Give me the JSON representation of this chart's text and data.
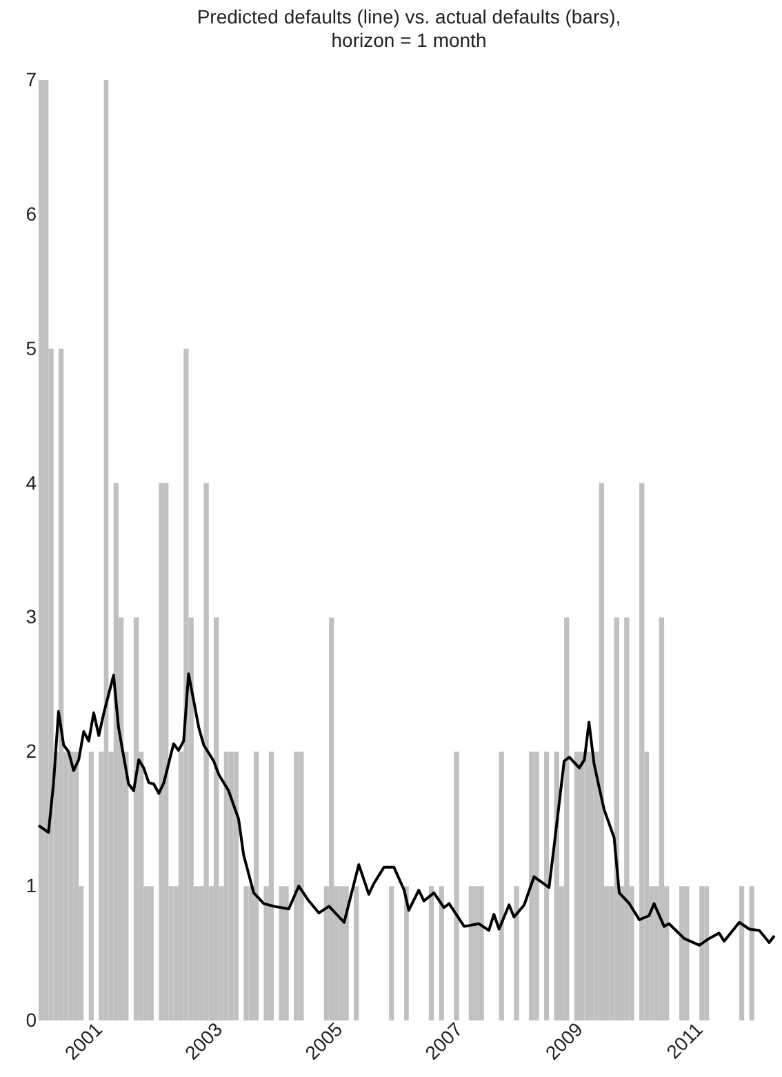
{
  "chart_data": {
    "type": "bar",
    "title": "Predicted defaults (line) vs. actual defaults (bars),\nhorizon = 1 month",
    "xlim": [
      "2000-01",
      "2012-05"
    ],
    "xticks": [
      {
        "value": "2001-01",
        "label": "2001"
      },
      {
        "value": "2003-01",
        "label": "2003"
      },
      {
        "value": "2005-01",
        "label": "2005"
      },
      {
        "value": "2007-01",
        "label": "2007"
      },
      {
        "value": "2009-01",
        "label": "2009"
      },
      {
        "value": "2011-01",
        "label": "2011"
      }
    ],
    "ylim": [
      0,
      7
    ],
    "yticks": [
      0,
      1,
      2,
      3,
      4,
      5,
      6,
      7
    ],
    "series": [
      {
        "color": "#c0c0c0",
        "x": [
          "2000-01",
          "2000-02",
          "2000-03",
          "2000-04",
          "2000-05",
          "2000-06",
          "2000-07",
          "2000-08",
          "2000-09",
          "2000-10",
          "2000-11",
          "2000-12",
          "2001-01",
          "2001-02",
          "2001-03",
          "2001-04",
          "2001-05",
          "2001-06",
          "2001-07",
          "2001-08",
          "2001-09",
          "2001-10",
          "2001-11",
          "2001-12",
          "2002-01",
          "2002-02",
          "2002-03",
          "2002-04",
          "2002-05",
          "2002-06",
          "2002-07",
          "2002-08",
          "2002-09",
          "2002-10",
          "2002-11",
          "2002-12",
          "2003-01",
          "2003-02",
          "2003-03",
          "2003-04",
          "2003-05",
          "2003-06",
          "2003-07",
          "2003-08",
          "2003-09",
          "2003-10",
          "2003-11",
          "2003-12",
          "2004-01",
          "2004-02",
          "2004-03",
          "2004-04",
          "2004-05",
          "2004-06",
          "2004-07",
          "2004-08",
          "2004-09",
          "2004-10",
          "2004-11",
          "2004-12",
          "2005-01",
          "2005-02",
          "2005-03",
          "2005-04",
          "2005-05",
          "2005-06",
          "2005-07",
          "2005-08",
          "2005-09",
          "2005-10",
          "2005-11",
          "2005-12",
          "2006-01",
          "2006-02",
          "2006-03",
          "2006-04",
          "2006-05",
          "2006-06",
          "2006-07",
          "2006-08",
          "2006-09",
          "2006-10",
          "2006-11",
          "2006-12",
          "2007-01",
          "2007-02",
          "2007-03",
          "2007-04",
          "2007-05",
          "2007-06",
          "2007-07",
          "2007-08",
          "2007-09",
          "2007-10",
          "2007-11",
          "2007-12",
          "2008-01",
          "2008-02",
          "2008-03",
          "2008-04",
          "2008-05",
          "2008-06",
          "2008-07",
          "2008-08",
          "2008-09",
          "2008-10",
          "2008-11",
          "2008-12",
          "2009-01",
          "2009-02",
          "2009-03",
          "2009-04",
          "2009-05",
          "2009-06",
          "2009-07",
          "2009-08",
          "2009-09",
          "2009-10",
          "2009-11",
          "2009-12",
          "2010-01",
          "2010-02",
          "2010-03",
          "2010-04",
          "2010-05",
          "2010-06",
          "2010-07",
          "2010-08",
          "2010-09",
          "2010-10",
          "2010-11",
          "2010-12",
          "2011-01",
          "2011-02",
          "2011-03",
          "2011-04",
          "2011-05",
          "2011-06",
          "2011-07",
          "2011-08",
          "2011-09",
          "2011-10",
          "2011-11",
          "2011-12",
          "2012-01",
          "2012-02",
          "2012-03",
          "2012-04"
        ],
        "values": [
          7,
          7,
          5,
          2,
          5,
          2,
          2,
          2,
          1,
          0,
          2,
          0,
          2,
          7,
          2,
          4,
          3,
          2,
          0,
          3,
          2,
          1,
          1,
          0,
          4,
          4,
          1,
          1,
          2,
          5,
          3,
          1,
          1,
          4,
          1,
          3,
          1,
          2,
          2,
          2,
          0,
          1,
          1,
          2,
          0,
          1,
          2,
          0,
          1,
          1,
          0,
          2,
          2,
          0,
          0,
          0,
          0,
          1,
          3,
          1,
          1,
          1,
          0,
          1,
          0,
          0,
          0,
          0,
          0,
          0,
          1,
          0,
          0,
          1,
          0,
          0,
          0,
          0,
          1,
          0,
          1,
          0,
          0,
          2,
          0,
          0,
          1,
          1,
          1,
          0,
          0,
          0,
          2,
          0,
          0,
          1,
          0,
          0,
          2,
          2,
          0,
          2,
          0,
          2,
          1,
          3,
          0,
          2,
          2,
          2,
          2,
          2,
          4,
          1,
          1,
          3,
          1,
          3,
          1,
          0,
          4,
          2,
          1,
          1,
          3,
          1,
          0,
          0,
          1,
          1,
          0,
          0,
          1,
          1,
          0,
          0,
          0,
          0,
          0,
          0,
          1,
          0,
          1,
          0,
          0,
          0,
          0,
          0
        ]
      },
      {
        "type": "line",
        "color": "#000000",
        "x": [
          "2000-01",
          "2000-03",
          "2000-04",
          "2000-05",
          "2000-06",
          "2000-07",
          "2000-08",
          "2000-09",
          "2000-10",
          "2000-11",
          "2000-12",
          "2001-01",
          "2001-02",
          "2001-04",
          "2001-05",
          "2001-07",
          "2001-08",
          "2001-09",
          "2001-10",
          "2001-11",
          "2001-12",
          "2002-01",
          "2002-02",
          "2002-04",
          "2002-05",
          "2002-06",
          "2002-07",
          "2002-09",
          "2002-10",
          "2002-12",
          "2003-01",
          "2003-03",
          "2003-05",
          "2003-06",
          "2003-08",
          "2003-10",
          "2003-12",
          "2004-03",
          "2004-05",
          "2004-07",
          "2004-09",
          "2004-11",
          "2005-02",
          "2005-05",
          "2005-07",
          "2005-08",
          "2005-10",
          "2005-12",
          "2006-02",
          "2006-03",
          "2006-05",
          "2006-06",
          "2006-08",
          "2006-10",
          "2006-11",
          "2007-02",
          "2007-05",
          "2007-07",
          "2007-08",
          "2007-09",
          "2007-11",
          "2007-12",
          "2008-02",
          "2008-04",
          "2008-07",
          "2008-08",
          "2008-10",
          "2008-11",
          "2009-01",
          "2009-02",
          "2009-03",
          "2009-04",
          "2009-05",
          "2009-06",
          "2009-08",
          "2009-09",
          "2009-11",
          "2010-01",
          "2010-03",
          "2010-04",
          "2010-06",
          "2010-07",
          "2010-10",
          "2011-01",
          "2011-03",
          "2011-05",
          "2011-06",
          "2011-09",
          "2011-11",
          "2012-01",
          "2012-03",
          "2012-04"
        ],
        "values": [
          1.45,
          1.4,
          1.77,
          2.3,
          2.05,
          2.0,
          1.86,
          1.94,
          2.15,
          2.08,
          2.29,
          2.12,
          2.29,
          2.57,
          2.18,
          1.76,
          1.71,
          1.94,
          1.88,
          1.77,
          1.76,
          1.69,
          1.77,
          2.06,
          2.01,
          2.08,
          2.58,
          2.18,
          2.05,
          1.93,
          1.83,
          1.71,
          1.5,
          1.23,
          0.95,
          0.87,
          0.85,
          0.83,
          1.0,
          0.89,
          0.8,
          0.85,
          0.73,
          1.16,
          0.94,
          1.02,
          1.14,
          1.14,
          0.97,
          0.82,
          0.97,
          0.89,
          0.95,
          0.84,
          0.87,
          0.7,
          0.72,
          0.67,
          0.79,
          0.68,
          0.86,
          0.77,
          0.86,
          1.07,
          0.99,
          1.3,
          1.93,
          1.96,
          1.88,
          1.94,
          2.22,
          1.91,
          1.74,
          1.57,
          1.36,
          0.95,
          0.87,
          0.75,
          0.78,
          0.87,
          0.7,
          0.72,
          0.61,
          0.56,
          0.61,
          0.65,
          0.59,
          0.73,
          0.68,
          0.67,
          0.58,
          0.63
        ]
      }
    ]
  }
}
